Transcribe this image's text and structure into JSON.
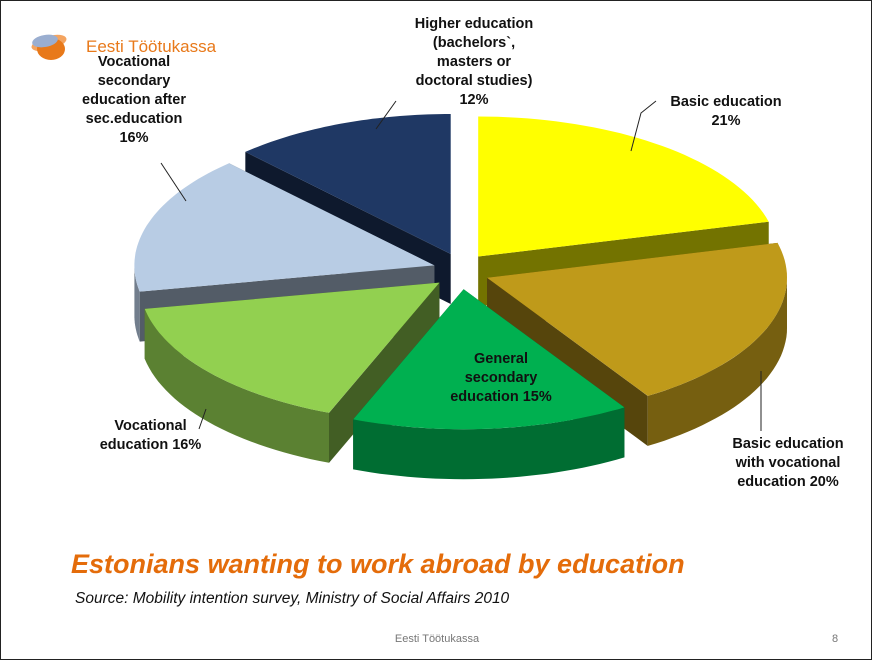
{
  "logo": {
    "text": "Eesti Töötukassa"
  },
  "footer": {
    "org": "Eesti Töötukassa",
    "page": "8"
  },
  "title": "Estonians wanting to work abroad by education",
  "source": "Source: Mobility intention survey, Ministry of Social Affairs 2010",
  "chart_data": {
    "type": "pie",
    "style": "3d exploded",
    "labels": [
      [
        "Basic education",
        "21%"
      ],
      [
        "Basic education",
        "with vocational",
        "education 20%"
      ],
      [
        "General",
        "secondary",
        "education 15%"
      ],
      [
        "Vocational",
        "education 16%"
      ],
      [
        "Vocational",
        "secondary",
        "education after",
        "sec.education",
        "16%"
      ],
      [
        "Higher education",
        "(bachelors`,",
        "masters or",
        "doctoral studies)",
        "12%"
      ]
    ],
    "categories": [
      "Basic education",
      "Basic education with vocational education",
      "General secondary education",
      "Vocational education",
      "Vocational secondary education after sec.education",
      "Higher education (bachelors`, masters or doctoral studies)"
    ],
    "values": [
      21,
      20,
      15,
      16,
      16,
      12
    ],
    "colors": [
      "#ffff00",
      "#bf9a1a",
      "#00b050",
      "#92d050",
      "#b8cce4",
      "#1f3864"
    ],
    "legend": "none"
  }
}
